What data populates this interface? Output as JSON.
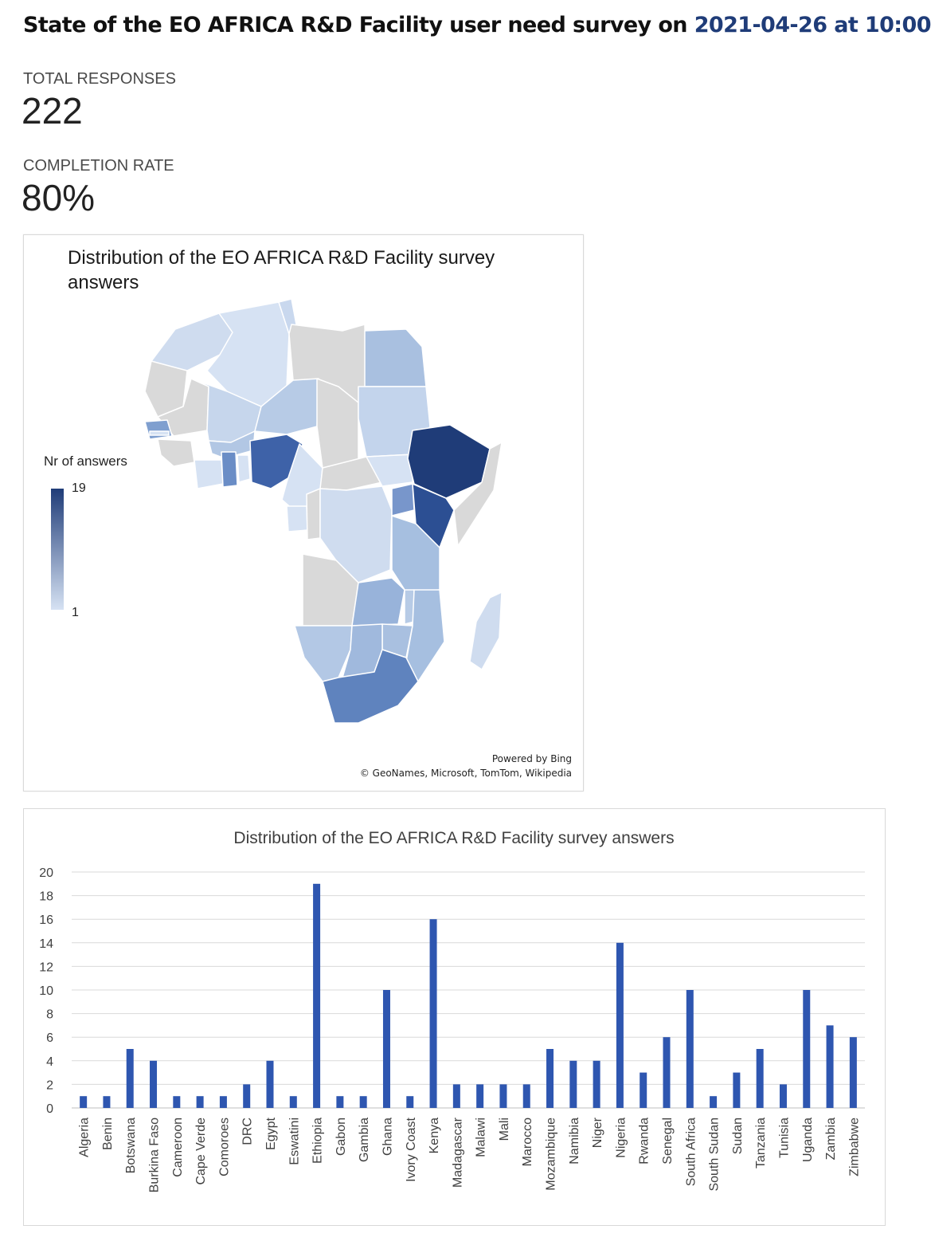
{
  "header": {
    "title_prefix": "State of the EO AFRICA R&D Facility user need survey on ",
    "title_date": "2021-04-26 at 10:00"
  },
  "kpis": {
    "total_label": "TOTAL RESPONSES",
    "total_value": "222",
    "completion_label": "COMPLETION RATE",
    "completion_value": "80%"
  },
  "map": {
    "title": "Distribution of the EO AFRICA  R&D Facility survey answers",
    "legend_title": "Nr of answers",
    "legend_max": "19",
    "legend_min": "1",
    "credit_line1": "Powered by Bing",
    "credit_line2": "© GeoNames, Microsoft, TomTom, Wikipedia",
    "colors": {
      "high": "#1f3c78",
      "low": "#d6e2f3",
      "no_data": "#d9d9d9"
    }
  },
  "chart_data": {
    "type": "bar",
    "title": "Distribution of the EO AFRICA R&D Facility survey answers",
    "categories": [
      "Algeria",
      "Benin",
      "Botswana",
      "Burkina Faso",
      "Cameroon",
      "Cape Verde",
      "Comoroes",
      "DRC",
      "Egypt",
      "Eswatini",
      "Ethiopia",
      "Gabon",
      "Gambia",
      "Ghana",
      "Ivory Coast",
      "Kenya",
      "Madagascar",
      "Malawi",
      "Mali",
      "Marocco",
      "Mozambique",
      "Namibia",
      "Niger",
      "Nigeria",
      "Rwanda",
      "Senegal",
      "South Africa",
      "South Sudan",
      "Sudan",
      "Tanzania",
      "Tunisia",
      "Uganda",
      "Zambia",
      "Zimbabwe"
    ],
    "values": [
      1,
      1,
      5,
      4,
      1,
      1,
      1,
      2,
      4,
      1,
      19,
      1,
      1,
      10,
      1,
      16,
      2,
      2,
      2,
      2,
      5,
      4,
      4,
      14,
      3,
      6,
      10,
      1,
      3,
      5,
      2,
      10,
      7,
      6
    ],
    "ylim": [
      0,
      20
    ],
    "yticks": [
      0,
      2,
      4,
      6,
      8,
      10,
      12,
      14,
      16,
      18,
      20
    ],
    "grid": true,
    "legend": "none",
    "bar_color": "#2e56b0"
  }
}
